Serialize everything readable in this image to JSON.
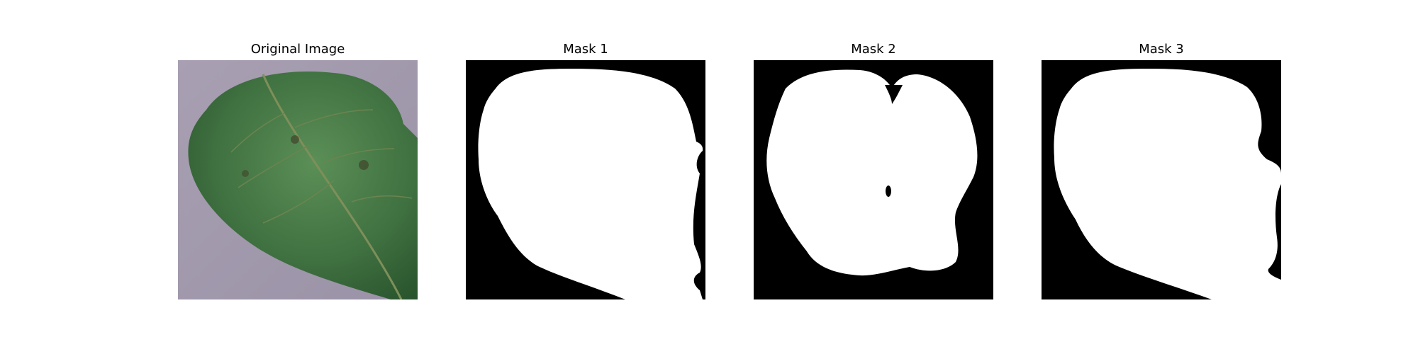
{
  "figure": {
    "panels": [
      {
        "title": "Original Image"
      },
      {
        "title": "Mask 1"
      },
      {
        "title": "Mask 2"
      },
      {
        "title": "Mask 3"
      }
    ]
  },
  "colors": {
    "background": "#ffffff",
    "mask_foreground": "#ffffff",
    "mask_background": "#000000",
    "leaf_dark": "#2a5a2e",
    "leaf_light": "#4f8a4d",
    "surface": "#a39aae"
  }
}
